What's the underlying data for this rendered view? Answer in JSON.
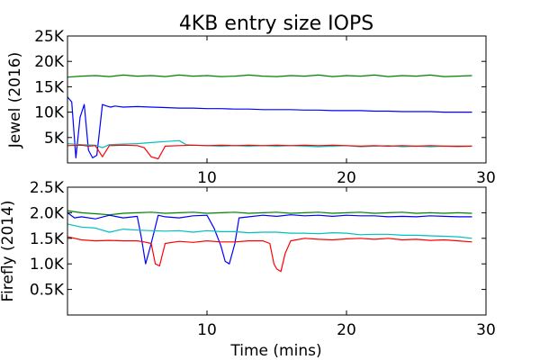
{
  "title": "4KB entry size IOPS",
  "xlabel": "Time (mins)",
  "chart_data": [
    {
      "type": "line",
      "ylabel": "Jewel (2016)",
      "xlim": [
        0,
        30
      ],
      "ylim": [
        0,
        25000
      ],
      "xticks": [
        10,
        20,
        30
      ],
      "xtick_labels": [
        "10",
        "20",
        "30"
      ],
      "yticks": [
        5000,
        10000,
        15000,
        20000,
        25000
      ],
      "ytick_labels": [
        "5K",
        "10K",
        "15K",
        "20K",
        "25K"
      ],
      "grid": false,
      "series": [
        {
          "color": "#008000",
          "x": [
            0,
            1,
            2,
            3,
            4,
            5,
            6,
            7,
            8,
            9,
            10,
            11,
            12,
            13,
            14,
            15,
            16,
            17,
            18,
            19,
            20,
            21,
            22,
            23,
            24,
            25,
            26,
            27,
            28,
            29
          ],
          "y": [
            16900,
            17100,
            17200,
            17000,
            17300,
            17100,
            17200,
            17000,
            17300,
            17100,
            17200,
            17000,
            17100,
            17300,
            17100,
            17000,
            17200,
            17100,
            17300,
            17000,
            17200,
            17100,
            17300,
            17000,
            17200,
            17100,
            17300,
            17000,
            17100,
            17200
          ]
        },
        {
          "color": "#0000ff",
          "x": [
            0,
            0.3,
            0.6,
            0.9,
            1.2,
            1.5,
            1.8,
            2.1,
            2.5,
            2.8,
            3.1,
            3.4,
            4,
            5,
            6,
            7,
            8,
            9,
            10,
            11,
            12,
            13,
            14,
            15,
            16,
            17,
            18,
            19,
            20,
            21,
            22,
            23,
            24,
            25,
            26,
            27,
            28,
            29
          ],
          "y": [
            13000,
            12000,
            1000,
            9000,
            11500,
            2500,
            1000,
            1500,
            11500,
            11200,
            11000,
            11200,
            11000,
            11100,
            11000,
            10900,
            10800,
            10800,
            10700,
            10700,
            10600,
            10600,
            10500,
            10500,
            10500,
            10400,
            10400,
            10300,
            10300,
            10300,
            10200,
            10200,
            10100,
            10100,
            10100,
            10000,
            10000,
            10000
          ]
        },
        {
          "color": "#00bfbf",
          "x": [
            0,
            1,
            2,
            2.5,
            3,
            4,
            5,
            6,
            7,
            8,
            8.5,
            9,
            10,
            11,
            12,
            13,
            14,
            15,
            16,
            17,
            18,
            19,
            20,
            21,
            22,
            23,
            24,
            25,
            26,
            27,
            28,
            29
          ],
          "y": [
            3800,
            3600,
            3500,
            3000,
            3600,
            3700,
            3800,
            4000,
            4200,
            4400,
            3600,
            3500,
            3400,
            3300,
            3400,
            3300,
            3400,
            3300,
            3400,
            3300,
            3200,
            3300,
            3400,
            3200,
            3300,
            3400,
            3200,
            3300,
            3200,
            3300,
            3200,
            3300
          ]
        },
        {
          "color": "#ff0000",
          "x": [
            0,
            1,
            1.5,
            2,
            2.5,
            3,
            4,
            5,
            5.5,
            6,
            6.5,
            7,
            8,
            9,
            10,
            11,
            12,
            13,
            14,
            15,
            16,
            17,
            18,
            19,
            20,
            21,
            22,
            23,
            24,
            25,
            26,
            27,
            28,
            29
          ],
          "y": [
            3400,
            3500,
            3300,
            3400,
            1200,
            3400,
            3500,
            3400,
            3000,
            1200,
            800,
            3300,
            3400,
            3500,
            3400,
            3500,
            3400,
            3500,
            3400,
            3500,
            3400,
            3500,
            3400,
            3500,
            3400,
            3300,
            3400,
            3300,
            3400,
            3300,
            3400,
            3300,
            3300,
            3300
          ]
        }
      ]
    },
    {
      "type": "line",
      "ylabel": "Firefly (2014)",
      "xlim": [
        0,
        30
      ],
      "ylim": [
        0,
        2500
      ],
      "xticks": [
        10,
        20,
        30
      ],
      "xtick_labels": [
        "10",
        "20",
        "30"
      ],
      "yticks": [
        500,
        1000,
        1500,
        2000,
        2500
      ],
      "ytick_labels": [
        "0.5K",
        "1.0K",
        "1.5K",
        "2.0K",
        "2.5K"
      ],
      "grid": false,
      "series": [
        {
          "color": "#008000",
          "x": [
            0,
            1,
            2,
            3,
            4,
            5,
            6,
            7,
            8,
            9,
            10,
            11,
            12,
            13,
            14,
            15,
            16,
            17,
            18,
            19,
            20,
            21,
            22,
            23,
            24,
            25,
            26,
            27,
            28,
            29
          ],
          "y": [
            2040,
            2000,
            1980,
            1960,
            1990,
            2000,
            2010,
            1990,
            2000,
            2010,
            1990,
            2000,
            2010,
            1990,
            2000,
            2010,
            1990,
            2000,
            2010,
            1990,
            2000,
            2010,
            1990,
            2000,
            2010,
            1990,
            2000,
            1990,
            2000,
            1990
          ]
        },
        {
          "color": "#0000ff",
          "x": [
            0,
            0.5,
            1,
            2,
            3,
            4,
            5,
            5.3,
            5.6,
            6,
            6.5,
            7,
            8,
            9,
            10,
            10.5,
            11,
            11.3,
            11.6,
            12,
            12.3,
            13,
            14,
            15,
            16,
            17,
            18,
            19,
            20,
            21,
            22,
            23,
            24,
            25,
            26,
            27,
            28,
            29
          ],
          "y": [
            2000,
            1900,
            1920,
            1880,
            1950,
            1900,
            1930,
            1500,
            1000,
            1400,
            1950,
            1920,
            1900,
            1940,
            1950,
            1700,
            1350,
            1050,
            1000,
            1400,
            1900,
            1920,
            1950,
            1930,
            1960,
            1940,
            1950,
            1930,
            1950,
            1940,
            1940,
            1920,
            1930,
            1920,
            1940,
            1930,
            1920,
            1920
          ]
        },
        {
          "color": "#00bfbf",
          "x": [
            0,
            1,
            2,
            3,
            4,
            5,
            6,
            7,
            8,
            9,
            10,
            11,
            12,
            13,
            14,
            15,
            16,
            17,
            18,
            19,
            20,
            21,
            22,
            23,
            24,
            25,
            26,
            27,
            28,
            29
          ],
          "y": [
            1780,
            1720,
            1700,
            1620,
            1680,
            1660,
            1650,
            1640,
            1650,
            1620,
            1650,
            1630,
            1630,
            1610,
            1620,
            1620,
            1600,
            1600,
            1590,
            1610,
            1600,
            1570,
            1580,
            1580,
            1560,
            1560,
            1550,
            1540,
            1530,
            1500
          ]
        },
        {
          "color": "#ff0000",
          "x": [
            0,
            1,
            2,
            3,
            4,
            5,
            5.5,
            6,
            6.3,
            6.6,
            7,
            8,
            9,
            10,
            11,
            12,
            13,
            14,
            14.5,
            14.8,
            15,
            15.3,
            15.6,
            16,
            17,
            18,
            19,
            20,
            21,
            22,
            23,
            24,
            25,
            26,
            27,
            28,
            29
          ],
          "y": [
            1530,
            1470,
            1450,
            1460,
            1450,
            1450,
            1430,
            1400,
            1000,
            960,
            1400,
            1440,
            1420,
            1450,
            1430,
            1430,
            1450,
            1450,
            1400,
            1000,
            900,
            850,
            1200,
            1450,
            1500,
            1480,
            1470,
            1490,
            1500,
            1480,
            1500,
            1470,
            1480,
            1460,
            1470,
            1450,
            1430
          ]
        }
      ]
    }
  ]
}
